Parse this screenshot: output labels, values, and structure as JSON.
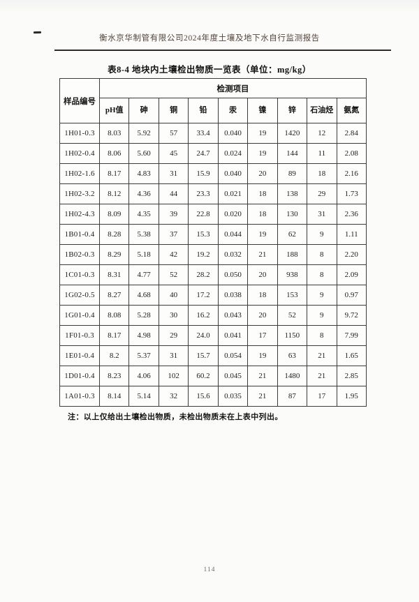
{
  "page": {
    "header": "衡水京华制管有限公司2024年度土壤及地下水自行监测报告",
    "page_number": "114"
  },
  "table": {
    "title": "表8-4  地块内土壤检出物质一览表（单位：mg/kg）",
    "corner_header": "样品编号",
    "group_header": "检测项目",
    "columns": [
      "pH值",
      "砷",
      "铜",
      "铅",
      "汞",
      "镍",
      "锌",
      "石油烃",
      "氨氮"
    ],
    "rows": [
      {
        "id": "1H01-0.3",
        "values": [
          "8.03",
          "5.92",
          "57",
          "33.4",
          "0.040",
          "19",
          "1420",
          "12",
          "2.84"
        ]
      },
      {
        "id": "1H02-0.4",
        "values": [
          "8.06",
          "5.60",
          "45",
          "24.7",
          "0.024",
          "19",
          "144",
          "11",
          "2.08"
        ]
      },
      {
        "id": "1H02-1.6",
        "values": [
          "8.17",
          "4.83",
          "31",
          "15.9",
          "0.040",
          "20",
          "89",
          "18",
          "2.16"
        ]
      },
      {
        "id": "1H02-3.2",
        "values": [
          "8.12",
          "4.36",
          "44",
          "23.3",
          "0.021",
          "18",
          "138",
          "29",
          "1.73"
        ]
      },
      {
        "id": "1H02-4.3",
        "values": [
          "8.09",
          "4.35",
          "39",
          "22.8",
          "0.020",
          "18",
          "130",
          "31",
          "2.36"
        ]
      },
      {
        "id": "1B01-0.4",
        "values": [
          "8.28",
          "5.38",
          "37",
          "15.3",
          "0.044",
          "19",
          "62",
          "9",
          "1.11"
        ]
      },
      {
        "id": "1B02-0.3",
        "values": [
          "8.29",
          "5.18",
          "42",
          "19.2",
          "0.032",
          "21",
          "188",
          "8",
          "2.20"
        ]
      },
      {
        "id": "1C01-0.3",
        "values": [
          "8.31",
          "4.77",
          "52",
          "28.2",
          "0.050",
          "20",
          "938",
          "8",
          "2.09"
        ]
      },
      {
        "id": "1G02-0.5",
        "values": [
          "8.27",
          "4.68",
          "40",
          "17.2",
          "0.038",
          "18",
          "153",
          "9",
          "0.97"
        ]
      },
      {
        "id": "1G01-0.4",
        "values": [
          "8.08",
          "5.28",
          "30",
          "16.2",
          "0.043",
          "20",
          "52",
          "9",
          "9.72"
        ]
      },
      {
        "id": "1F01-0.3",
        "values": [
          "8.17",
          "4.98",
          "29",
          "24.0",
          "0.041",
          "17",
          "1150",
          "8",
          "7.99"
        ]
      },
      {
        "id": "1E01-0.4",
        "values": [
          "8.2",
          "5.37",
          "31",
          "15.7",
          "0.054",
          "19",
          "63",
          "21",
          "1.65"
        ]
      },
      {
        "id": "1D01-0.4",
        "values": [
          "8.23",
          "4.06",
          "102",
          "60.2",
          "0.045",
          "21",
          "1480",
          "21",
          "2.85"
        ]
      },
      {
        "id": "1A01-0.3",
        "values": [
          "8.14",
          "5.14",
          "32",
          "15.6",
          "0.035",
          "21",
          "87",
          "17",
          "1.95"
        ]
      }
    ],
    "note": "注：以上仅给出土壤检出物质，未检出物质未在上表中列出。"
  }
}
